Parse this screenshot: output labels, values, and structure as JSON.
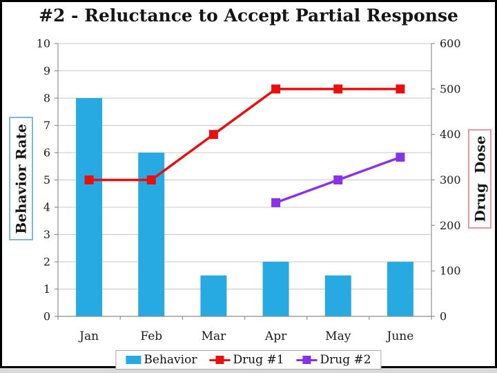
{
  "chart_data": {
    "type": "combo-bar-line",
    "title": "#2 - Reluctance to Accept Partial Response",
    "categories": [
      "Jan",
      "Feb",
      "Mar",
      "Apr",
      "May",
      "June"
    ],
    "left_axis": {
      "label": "Behavior Rate",
      "min": 0,
      "max": 10,
      "ticks": [
        0,
        1,
        2,
        3,
        4,
        5,
        6,
        7,
        8,
        9,
        10
      ]
    },
    "right_axis": {
      "label": "Drug  Dose",
      "min": 0,
      "max": 600,
      "ticks": [
        0,
        100,
        200,
        300,
        400,
        500,
        600
      ]
    },
    "series": [
      {
        "name": "Behavior",
        "type": "bar",
        "axis": "left",
        "color": "#27AAE1",
        "values": [
          8,
          6,
          1.5,
          2,
          1.5,
          2
        ]
      },
      {
        "name": "Drug #1",
        "type": "line",
        "axis": "right",
        "color": "#EA0F0F",
        "values": [
          300,
          300,
          400,
          500,
          500,
          500
        ]
      },
      {
        "name": "Drug #2",
        "type": "line",
        "axis": "right",
        "color": "#8933E8",
        "values": [
          null,
          null,
          null,
          250,
          300,
          350
        ]
      }
    ],
    "legend_position": "bottom",
    "grid": true
  },
  "style_colors": {
    "gridline": "#C8C8C8",
    "axis_line": "#8E8E8E",
    "tick_text": "#1A1A1A",
    "left_title_border": "#7FB5E3",
    "right_title_border": "#E79A9A",
    "legend_border": "#A6A6A6",
    "frame": "#000000"
  }
}
